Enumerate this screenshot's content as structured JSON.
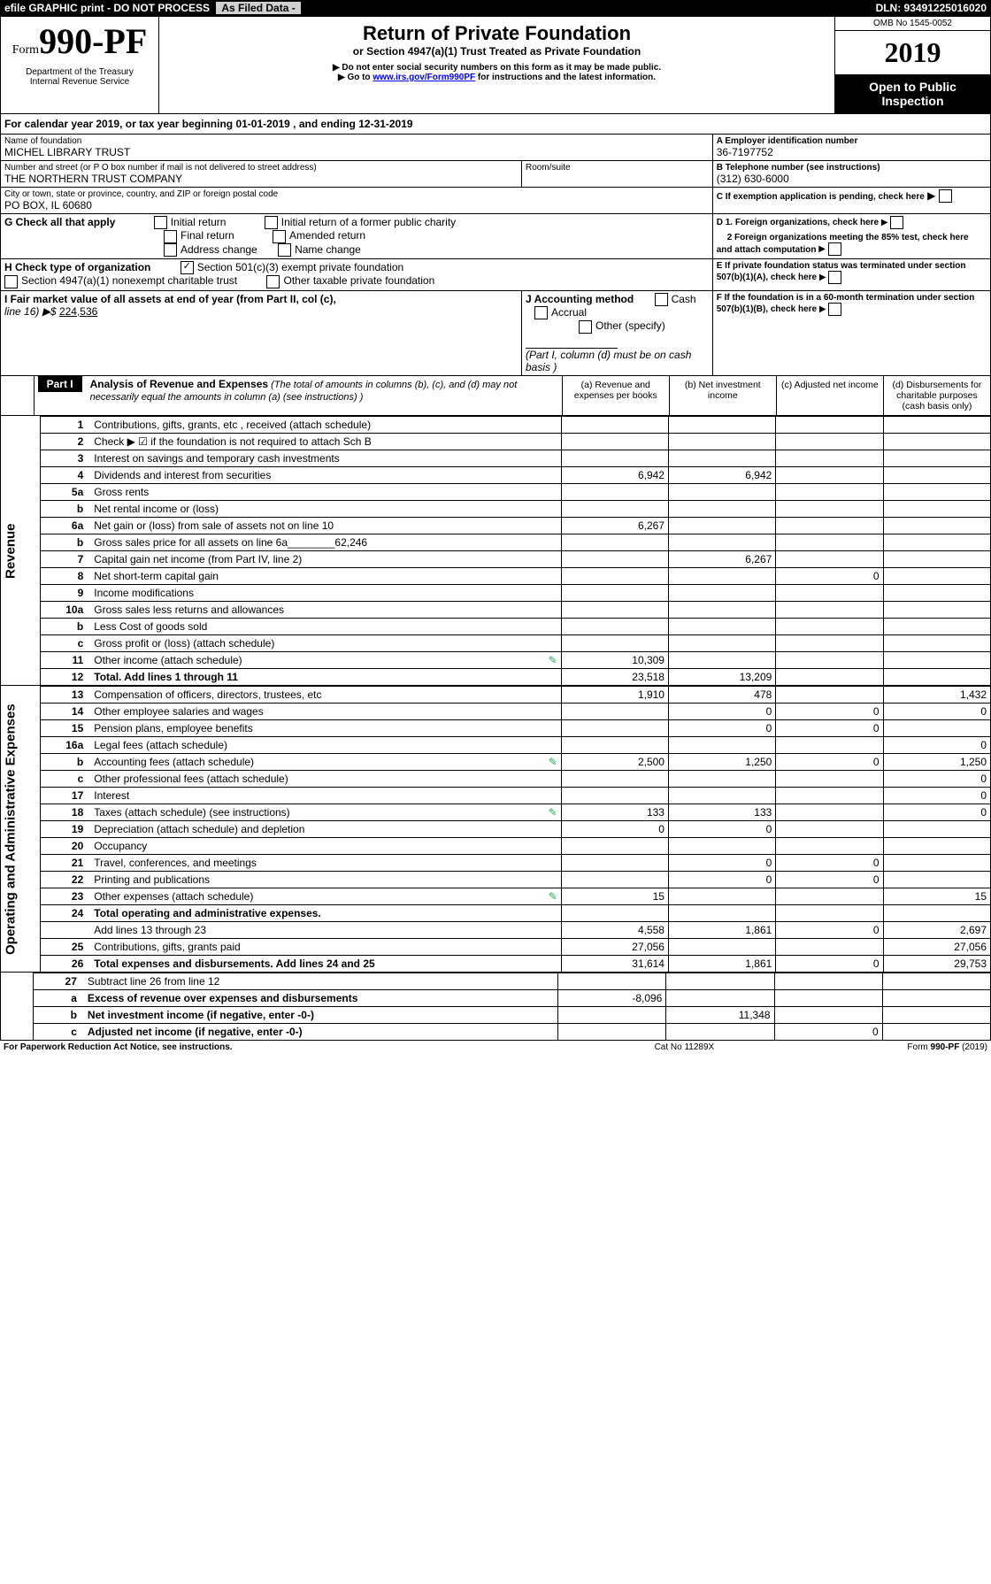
{
  "topbar": {
    "efile": "efile GRAPHIC print - DO NOT PROCESS",
    "asfiled": "As Filed Data -",
    "dln": "DLN: 93491225016020"
  },
  "omb": "OMB No 1545-0052",
  "formno_prefix": "Form",
  "formno": "990-PF",
  "dept": "Department of the Treasury\nInternal Revenue Service",
  "title": "Return of Private Foundation",
  "subtitle": "or Section 4947(a)(1) Trust Treated as Private Foundation",
  "instr1": "▶ Do not enter social security numbers on this form as it may be made public.",
  "instr2_pre": "▶ Go to ",
  "instr2_link": "www.irs.gov/Form990PF",
  "instr2_post": " for instructions and the latest information.",
  "taxyear": "2019",
  "otp": "Open to Public Inspection",
  "cal": {
    "label_pre": "For calendar year 2019, or tax year beginning ",
    "begin": "01-01-2019",
    "mid": " , and ending ",
    "end": "12-31-2019"
  },
  "name_lbl": "Name of foundation",
  "name": "MICHEL LIBRARY TRUST",
  "ein_lbl": "A Employer identification number",
  "ein": "36-7197752",
  "addr_lbl": "Number and street (or P O  box number if mail is not delivered to street address)",
  "addr": "THE NORTHERN TRUST COMPANY",
  "room_lbl": "Room/suite",
  "phone_lbl": "B Telephone number (see instructions)",
  "phone": "(312) 630-6000",
  "city_lbl": "City or town, state or province, country, and ZIP or foreign postal code",
  "city": "PO BOX, IL  60680",
  "cpending": "C If exemption application is pending, check here",
  "g_lbl": "G Check all that apply",
  "g_opts": [
    "Initial return",
    "Initial return of a former public charity",
    "Final return",
    "Amended return",
    "Address change",
    "Name change"
  ],
  "h_lbl": "H Check type of organization",
  "h1": "Section 501(c)(3) exempt private foundation",
  "h2": "Section 4947(a)(1) nonexempt charitable trust",
  "h3": "Other taxable private foundation",
  "d1": "D 1. Foreign organizations, check here",
  "d2": "2 Foreign organizations meeting the 85% test, check here and attach computation",
  "e": "E  If private foundation status was terminated under section 507(b)(1)(A), check here",
  "i_lbl": "I Fair market value of all assets at end of year (from Part II, col  (c),",
  "i_val_lbl": "line 16) ▶$ ",
  "i_val": "224,536",
  "j_lbl": "J Accounting method",
  "j1": "Cash",
  "j2": "Accrual",
  "j3": "Other (specify)",
  "j_note": "(Part I, column (d) must be on cash basis )",
  "f": "F  If the foundation is in a 60-month termination under section 507(b)(1)(B), check here",
  "part1_badge": "Part I",
  "part1_title": "Analysis of Revenue and Expenses",
  "part1_note": " (The total of amounts in columns (b), (c), and (d) may not necessarily equal the amounts in column (a) (see instructions) )",
  "colheaders": {
    "a": "(a) Revenue and expenses per books",
    "b": "(b) Net investment income",
    "c": "(c) Adjusted net income",
    "d": "(d) Disbursements for charitable purposes (cash basis only)"
  },
  "sections": {
    "rev": "Revenue",
    "exp": "Operating and Administrative Expenses"
  },
  "rows": [
    {
      "n": "1",
      "t": "Contributions, gifts, grants, etc , received (attach schedule)"
    },
    {
      "n": "2",
      "t": "Check ▶ ☑ if the foundation is not required to attach Sch B"
    },
    {
      "n": "3",
      "t": "Interest on savings and temporary cash investments"
    },
    {
      "n": "4",
      "t": "Dividends and interest from securities",
      "a": "6,942",
      "b": "6,942"
    },
    {
      "n": "5a",
      "t": "Gross rents"
    },
    {
      "n": "b",
      "t": "Net rental income or (loss)"
    },
    {
      "n": "6a",
      "t": "Net gain or (loss) from sale of assets not on line 10",
      "a": "6,267"
    },
    {
      "n": "b",
      "t": "Gross sales price for all assets on line 6a",
      "inline": "62,246"
    },
    {
      "n": "7",
      "t": "Capital gain net income (from Part IV, line 2)",
      "b": "6,267"
    },
    {
      "n": "8",
      "t": "Net short-term capital gain",
      "c": "0"
    },
    {
      "n": "9",
      "t": "Income modifications"
    },
    {
      "n": "10a",
      "t": "Gross sales less returns and allowances"
    },
    {
      "n": "b",
      "t": "Less  Cost of goods sold"
    },
    {
      "n": "c",
      "t": "Gross profit or (loss) (attach schedule)"
    },
    {
      "n": "11",
      "t": "Other income (attach schedule)",
      "icon": true,
      "a": "10,309"
    },
    {
      "n": "12",
      "t": "Total. Add lines 1 through 11",
      "bold": true,
      "a": "23,518",
      "b": "13,209"
    }
  ],
  "exprows": [
    {
      "n": "13",
      "t": "Compensation of officers, directors, trustees, etc",
      "a": "1,910",
      "b": "478",
      "d": "1,432"
    },
    {
      "n": "14",
      "t": "Other employee salaries and wages",
      "b": "0",
      "c": "0",
      "d": "0"
    },
    {
      "n": "15",
      "t": "Pension plans, employee benefits",
      "b": "0",
      "c": "0"
    },
    {
      "n": "16a",
      "t": "Legal fees (attach schedule)",
      "d": "0"
    },
    {
      "n": "b",
      "t": "Accounting fees (attach schedule)",
      "icon": true,
      "a": "2,500",
      "b": "1,250",
      "c": "0",
      "d": "1,250"
    },
    {
      "n": "c",
      "t": "Other professional fees (attach schedule)",
      "d": "0"
    },
    {
      "n": "17",
      "t": "Interest",
      "d": "0"
    },
    {
      "n": "18",
      "t": "Taxes (attach schedule) (see instructions)",
      "icon": true,
      "a": "133",
      "b": "133",
      "d": "0"
    },
    {
      "n": "19",
      "t": "Depreciation (attach schedule) and depletion",
      "a": "0",
      "b": "0"
    },
    {
      "n": "20",
      "t": "Occupancy"
    },
    {
      "n": "21",
      "t": "Travel, conferences, and meetings",
      "b": "0",
      "c": "0"
    },
    {
      "n": "22",
      "t": "Printing and publications",
      "b": "0",
      "c": "0"
    },
    {
      "n": "23",
      "t": "Other expenses (attach schedule)",
      "icon": true,
      "a": "15",
      "d": "15"
    },
    {
      "n": "24",
      "t": "Total operating and administrative expenses.",
      "bold": true
    },
    {
      "n": "",
      "t": "Add lines 13 through 23",
      "a": "4,558",
      "b": "1,861",
      "c": "0",
      "d": "2,697"
    },
    {
      "n": "25",
      "t": "Contributions, gifts, grants paid",
      "a": "27,056",
      "d": "27,056"
    },
    {
      "n": "26",
      "t": "Total expenses and disbursements. Add lines 24 and 25",
      "bold": true,
      "a": "31,614",
      "b": "1,861",
      "c": "0",
      "d": "29,753"
    }
  ],
  "sumrows": [
    {
      "n": "27",
      "t": "Subtract line 26 from line 12"
    },
    {
      "n": "a",
      "t": "Excess of revenue over expenses and disbursements",
      "bold": true,
      "a": "-8,096"
    },
    {
      "n": "b",
      "t": "Net investment income (if negative, enter -0-)",
      "bold": true,
      "b": "11,348"
    },
    {
      "n": "c",
      "t": "Adjusted net income (if negative, enter -0-)",
      "bold": true,
      "c": "0"
    }
  ],
  "footer": {
    "left": "For Paperwork Reduction Act Notice, see instructions.",
    "mid": "Cat  No  11289X",
    "right": "Form 990-PF (2019)"
  }
}
